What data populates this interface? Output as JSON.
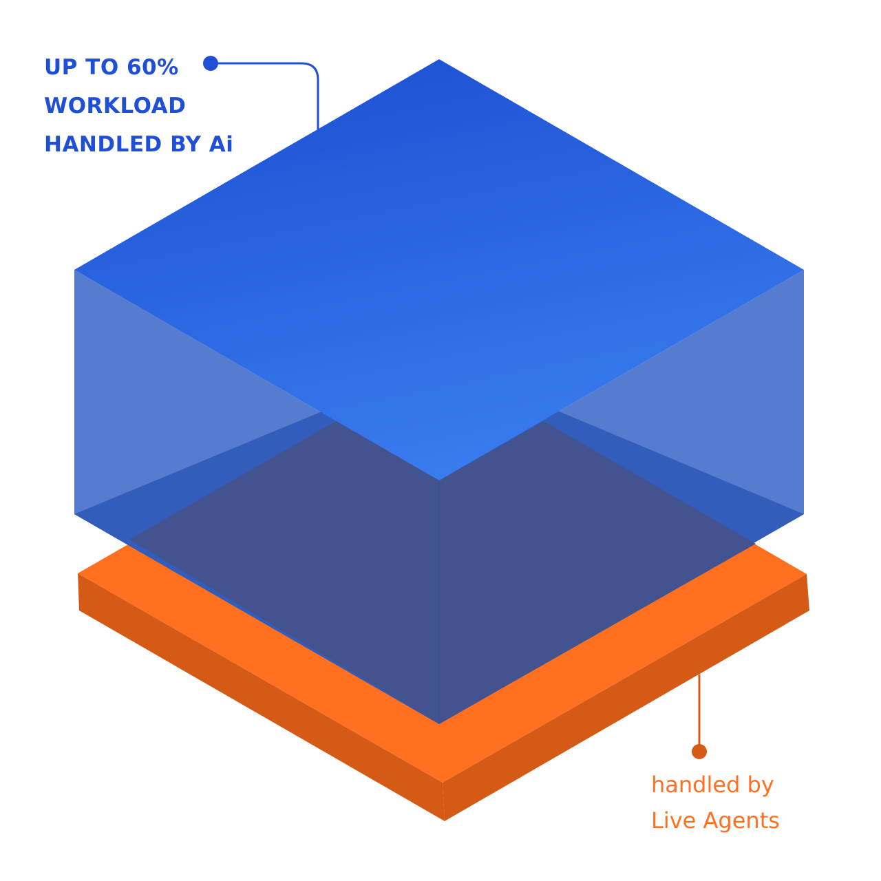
{
  "colors": {
    "ai_blue": "#1f4fd4",
    "cube_top_light": "#3b7ff0",
    "cube_side": "#3f6cc4",
    "cube_front": "#42538f",
    "agents_orange": "#ff7020",
    "agents_orange_dark": "#d45a16"
  },
  "ai_callout": {
    "lines": [
      "UP TO 60%",
      "WORKLOAD",
      "HANDLED BY Ai"
    ]
  },
  "agents_callout": {
    "lines": [
      "handled  by",
      "Live Agents"
    ]
  }
}
